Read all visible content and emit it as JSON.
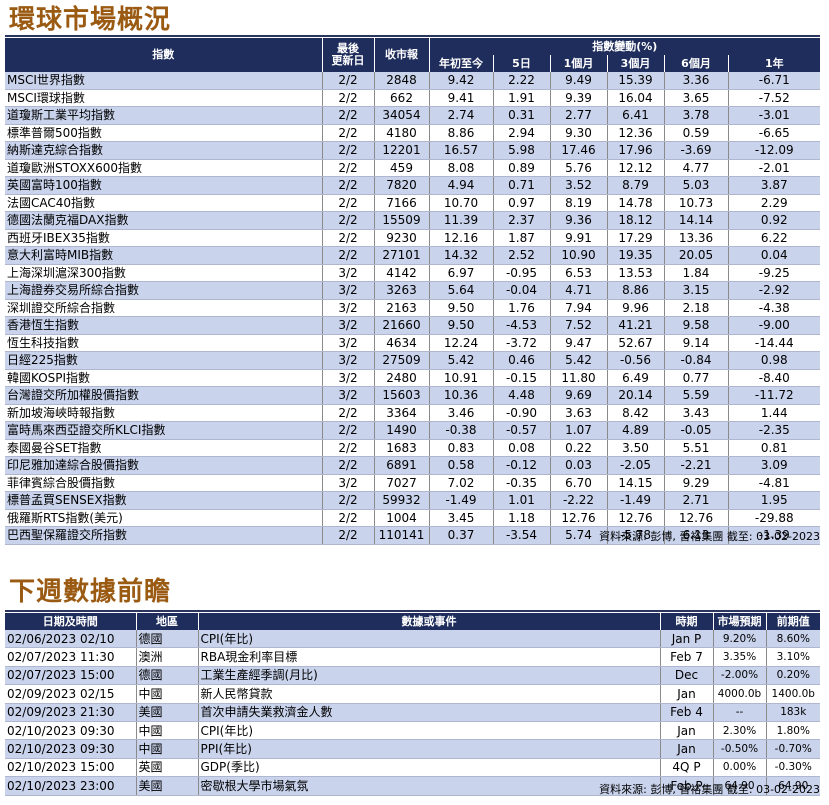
{
  "global": {
    "title": "環球市場概況",
    "headers": {
      "index": "指數",
      "updated": "最後更新日",
      "close": "收市報",
      "changes": "指數變動(%)",
      "periods": [
        "年初至今",
        "5日",
        "1個月",
        "3個月",
        "6個月",
        "1年"
      ]
    },
    "rows": [
      [
        "MSCI世界指數",
        "2/2",
        "2848",
        "9.42",
        "2.22",
        "9.49",
        "15.39",
        "3.36",
        "-6.71"
      ],
      [
        "MSCI環球指數",
        "2/2",
        "662",
        "9.41",
        "1.91",
        "9.39",
        "16.04",
        "3.65",
        "-7.52"
      ],
      [
        "道瓊斯工業平均指數",
        "2/2",
        "34054",
        "2.74",
        "0.31",
        "2.77",
        "6.41",
        "3.78",
        "-3.01"
      ],
      [
        "標準普爾500指數",
        "2/2",
        "4180",
        "8.86",
        "2.94",
        "9.30",
        "12.36",
        "0.59",
        "-6.65"
      ],
      [
        "納斯達克綜合指數",
        "2/2",
        "12201",
        "16.57",
        "5.98",
        "17.46",
        "17.96",
        "-3.69",
        "-12.09"
      ],
      [
        "道瓊歐洲STOXX600指數",
        "2/2",
        "459",
        "8.08",
        "0.89",
        "5.76",
        "12.12",
        "4.77",
        "-2.01"
      ],
      [
        "英國富時100指數",
        "2/2",
        "7820",
        "4.94",
        "0.71",
        "3.52",
        "8.79",
        "5.03",
        "3.87"
      ],
      [
        "法國CAC40指數",
        "2/2",
        "7166",
        "10.70",
        "0.97",
        "8.19",
        "14.78",
        "10.73",
        "2.29"
      ],
      [
        "德國法蘭克福DAX指數",
        "2/2",
        "15509",
        "11.39",
        "2.37",
        "9.36",
        "18.12",
        "14.14",
        "0.92"
      ],
      [
        "西班牙IBEX35指數",
        "2/2",
        "9230",
        "12.16",
        "1.87",
        "9.91",
        "17.29",
        "13.36",
        "6.22"
      ],
      [
        "意大利富時MIB指數",
        "2/2",
        "27101",
        "14.32",
        "2.52",
        "10.90",
        "19.35",
        "20.05",
        "0.04"
      ],
      [
        "上海深圳滬深300指數",
        "3/2",
        "4142",
        "6.97",
        "-0.95",
        "6.53",
        "13.53",
        "1.84",
        "-9.25"
      ],
      [
        "上海證券交易所綜合指數",
        "3/2",
        "3263",
        "5.64",
        "-0.04",
        "4.71",
        "8.86",
        "3.15",
        "-2.92"
      ],
      [
        "深圳證交所綜合指數",
        "3/2",
        "2163",
        "9.50",
        "1.76",
        "7.94",
        "9.96",
        "2.18",
        "-4.38"
      ],
      [
        "香港恆生指數",
        "3/2",
        "21660",
        "9.50",
        "-4.53",
        "7.52",
        "41.21",
        "9.58",
        "-9.00"
      ],
      [
        "恆生科技指數",
        "3/2",
        "4634",
        "12.24",
        "-3.72",
        "9.47",
        "52.67",
        "9.14",
        "-14.44"
      ],
      [
        "日經225指數",
        "3/2",
        "27509",
        "5.42",
        "0.46",
        "5.42",
        "-0.56",
        "-0.84",
        "0.98"
      ],
      [
        "韓國KOSPI指數",
        "3/2",
        "2480",
        "10.91",
        "-0.15",
        "11.80",
        "6.49",
        "0.77",
        "-8.40"
      ],
      [
        "台灣證交所加權股價指數",
        "3/2",
        "15603",
        "10.36",
        "4.48",
        "9.69",
        "20.14",
        "5.59",
        "-11.72"
      ],
      [
        "新加坡海峽時報指數",
        "2/2",
        "3364",
        "3.46",
        "-0.90",
        "3.63",
        "8.42",
        "3.43",
        "1.44"
      ],
      [
        "富時馬來西亞證交所KLCI指數",
        "2/2",
        "1490",
        "-0.38",
        "-0.57",
        "1.07",
        "4.89",
        "-0.05",
        "-2.35"
      ],
      [
        "泰國曼谷SET指數",
        "2/2",
        "1683",
        "0.83",
        "0.08",
        "0.22",
        "3.50",
        "5.51",
        "0.81"
      ],
      [
        "印尼雅加達綜合股價指數",
        "2/2",
        "6891",
        "0.58",
        "-0.12",
        "0.03",
        "-2.05",
        "-2.21",
        "3.09"
      ],
      [
        "菲律賓綜合股價指數",
        "3/2",
        "7027",
        "7.02",
        "-0.35",
        "6.70",
        "14.15",
        "9.29",
        "-4.81"
      ],
      [
        "標普孟買SENSEX指數",
        "2/2",
        "59932",
        "-1.49",
        "1.01",
        "-2.22",
        "-1.49",
        "2.71",
        "1.95"
      ],
      [
        "俄羅斯RTS指數(美元)",
        "2/2",
        "1004",
        "3.45",
        "1.18",
        "12.76",
        "12.76",
        "12.76",
        "-29.88"
      ],
      [
        "巴西聖保羅證交所指數",
        "2/2",
        "110141",
        "0.37",
        "-3.54",
        "5.74",
        "-5.78",
        "6.13",
        "-1.39"
      ]
    ],
    "source": "資料來源: 彭博, 晉裕集團 截至: 03-02-2023"
  },
  "calendar": {
    "title": "下週數據前瞻",
    "headers": [
      "日期及時間",
      "地區",
      "數據或事件",
      "時期",
      "市場預期",
      "前期值"
    ],
    "rows": [
      [
        "02/06/2023 02/10",
        "德國",
        "CPI(年比)",
        "Jan P",
        "9.20%",
        "8.60%"
      ],
      [
        "02/07/2023 11:30",
        "澳洲",
        "RBA現金利率目標",
        "Feb 7",
        "3.35%",
        "3.10%"
      ],
      [
        "02/07/2023 15:00",
        "德國",
        "工業生產經季調(月比)",
        "Dec",
        "-2.00%",
        "0.20%"
      ],
      [
        "02/09/2023 02/15",
        "中國",
        "新人民幣貸款",
        "Jan",
        "4000.0b",
        "1400.0b"
      ],
      [
        "02/09/2023 21:30",
        "美國",
        "首次申請失業救濟金人數",
        "Feb 4",
        "--",
        "183k"
      ],
      [
        "02/10/2023 09:30",
        "中國",
        "CPI(年比)",
        "Jan",
        "2.30%",
        "1.80%"
      ],
      [
        "02/10/2023 09:30",
        "中國",
        "PPI(年比)",
        "Jan",
        "-0.50%",
        "-0.70%"
      ],
      [
        "02/10/2023 15:00",
        "英國",
        "GDP(季比)",
        "4Q P",
        "0.00%",
        "-0.30%"
      ],
      [
        "02/10/2023 23:00",
        "美國",
        "密歇根大學市場氣氛",
        "Feb P",
        "64.90",
        "64.90"
      ]
    ],
    "source": "資料來源: 彭博, 晉裕集團 截至: 03-02-2023"
  }
}
